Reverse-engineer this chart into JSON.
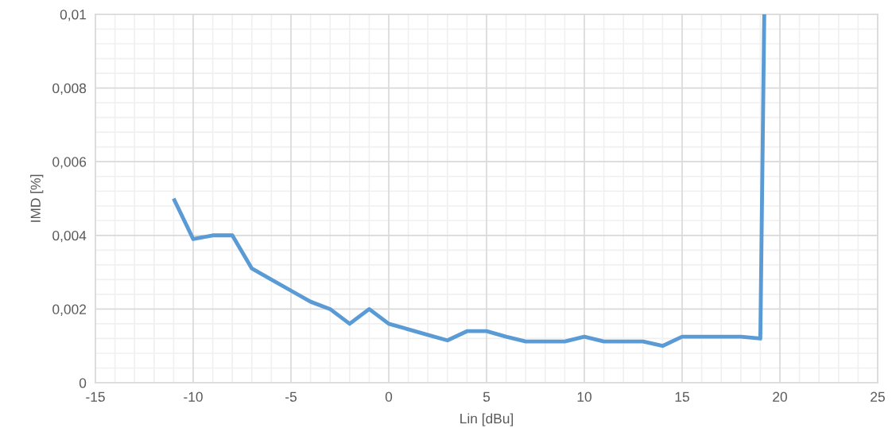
{
  "chart_data": {
    "type": "line",
    "xlabel": "Lin [dBu]",
    "ylabel": "IMD [%]",
    "x": [
      -11,
      -10,
      -9,
      -8,
      -7,
      -6,
      -5,
      -4,
      -3,
      -2,
      -1,
      0,
      1,
      2,
      3,
      4,
      5,
      6,
      7,
      8,
      9,
      10,
      11,
      12,
      13,
      14,
      15,
      16,
      17,
      18,
      19,
      19.2
    ],
    "series": [
      {
        "color": "#5b9bd5",
        "values": [
          0.005,
          0.0039,
          0.004,
          0.004,
          0.0031,
          0.0028,
          0.0025,
          0.0022,
          0.002,
          0.0016,
          0.002,
          0.0016,
          0.00145,
          0.0013,
          0.00115,
          0.0014,
          0.0014,
          0.00125,
          0.00112,
          0.00112,
          0.00112,
          0.00125,
          0.00112,
          0.00112,
          0.00112,
          0.001,
          0.00125,
          0.00125,
          0.00125,
          0.00125,
          0.0012,
          0.01
        ]
      }
    ],
    "xlim": [
      -15,
      25
    ],
    "xticks": [
      -15,
      -10,
      -5,
      0,
      5,
      10,
      15,
      20,
      25
    ],
    "ylim": [
      0,
      0.01
    ],
    "yticks": [
      {
        "value": 0,
        "label": "0"
      },
      {
        "value": 0.002,
        "label": "0,002"
      },
      {
        "value": 0.004,
        "label": "0,004"
      },
      {
        "value": 0.006,
        "label": "0,006"
      },
      {
        "value": 0.008,
        "label": "0,008"
      },
      {
        "value": 0.01,
        "label": "0,01"
      }
    ],
    "grid": true,
    "legend": false,
    "marker": "none",
    "line_style": "solid"
  }
}
